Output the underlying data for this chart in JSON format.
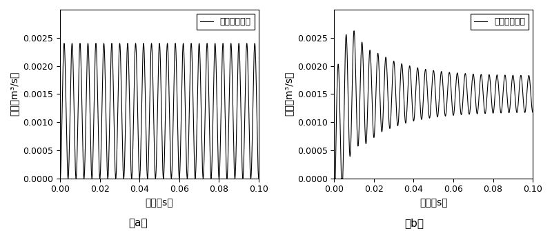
{
  "inlet_legend": "进口脉动流体",
  "outlet_legend": "出口脉动流体",
  "xlabel": "时间（s）",
  "ylabel": "流量（m³/s）",
  "label_a": "（a）",
  "label_b": "（b）",
  "xlim": [
    0.0,
    0.1
  ],
  "ylim": [
    0.0,
    0.003
  ],
  "yticks": [
    0.0,
    0.0005,
    0.001,
    0.0015,
    0.002,
    0.0025
  ],
  "xticks": [
    0.0,
    0.02,
    0.04,
    0.06,
    0.08,
    0.1
  ],
  "inlet_freq": 250,
  "inlet_mean": 0.0012,
  "inlet_amp": 0.0012,
  "outlet_freq": 250,
  "outlet_mean": 0.0015,
  "outlet_amp_steady": 0.00032,
  "line_color": "#000000",
  "line_width": 0.8,
  "figsize": [
    8.0,
    3.35
  ],
  "dpi": 100
}
